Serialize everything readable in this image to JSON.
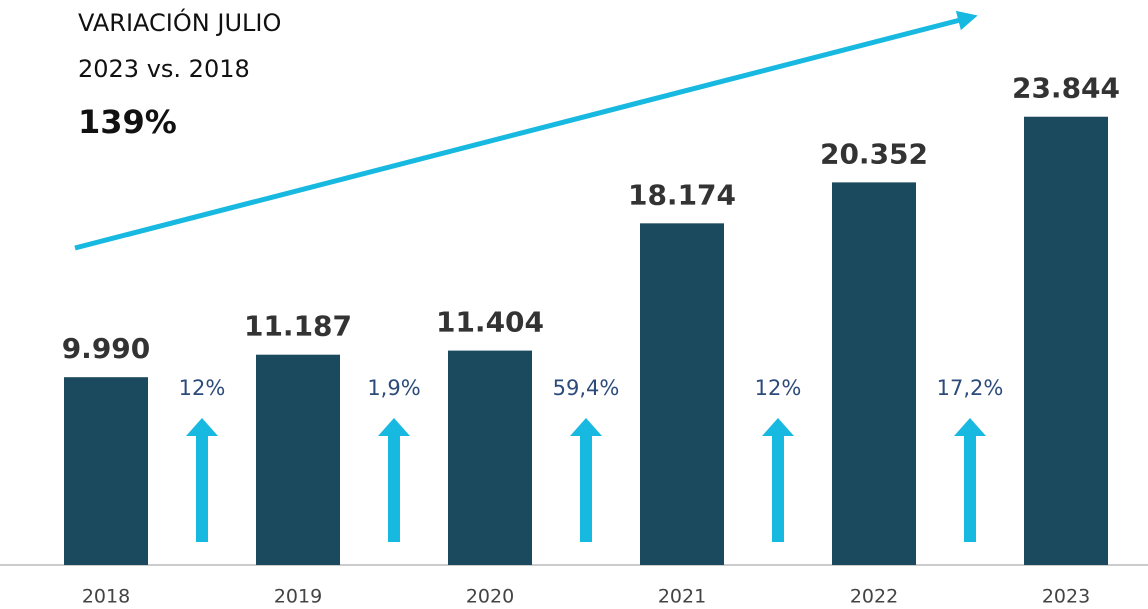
{
  "chart_data": {
    "type": "bar",
    "title": "VARIACIÓN JULIO",
    "subtitle": "2023 vs. 2018",
    "headline": "139%",
    "categories": [
      "2018",
      "2019",
      "2020",
      "2021",
      "2022",
      "2023"
    ],
    "values": [
      9990,
      11187,
      11404,
      18174,
      20352,
      23844
    ],
    "value_labels": [
      "9.990",
      "11.187",
      "11.404",
      "18.174",
      "20.352",
      "23.844"
    ],
    "annotations": [
      "12%",
      "1,9%",
      "59,4%",
      "12%",
      "17,2%"
    ],
    "color": "#1b4a5e",
    "ylim": [
      0,
      25000
    ]
  }
}
